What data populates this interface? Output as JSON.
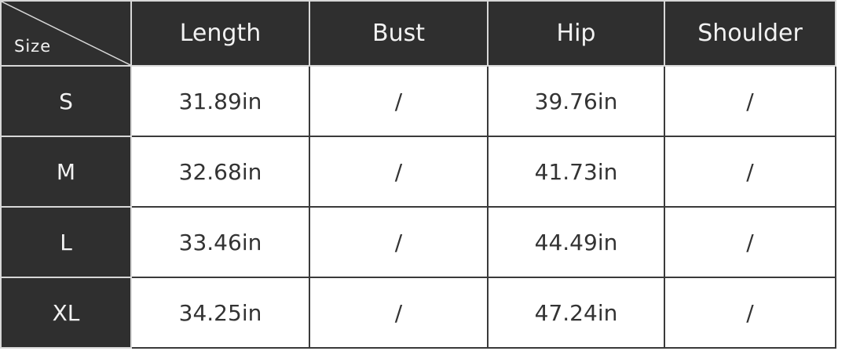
{
  "header": {
    "corner_label": "Size",
    "columns": [
      "Length",
      "Bust",
      "Hip",
      "Shoulder"
    ]
  },
  "rows": [
    {
      "size": "S",
      "values": [
        "31.89in",
        "/",
        "39.76in",
        "/"
      ]
    },
    {
      "size": "M",
      "values": [
        "32.68in",
        "/",
        "41.73in",
        "/"
      ]
    },
    {
      "size": "L",
      "values": [
        "33.46in",
        "/",
        "44.49in",
        "/"
      ]
    },
    {
      "size": "XL",
      "values": [
        "34.25in",
        "/",
        "47.24in",
        "/"
      ]
    }
  ]
}
